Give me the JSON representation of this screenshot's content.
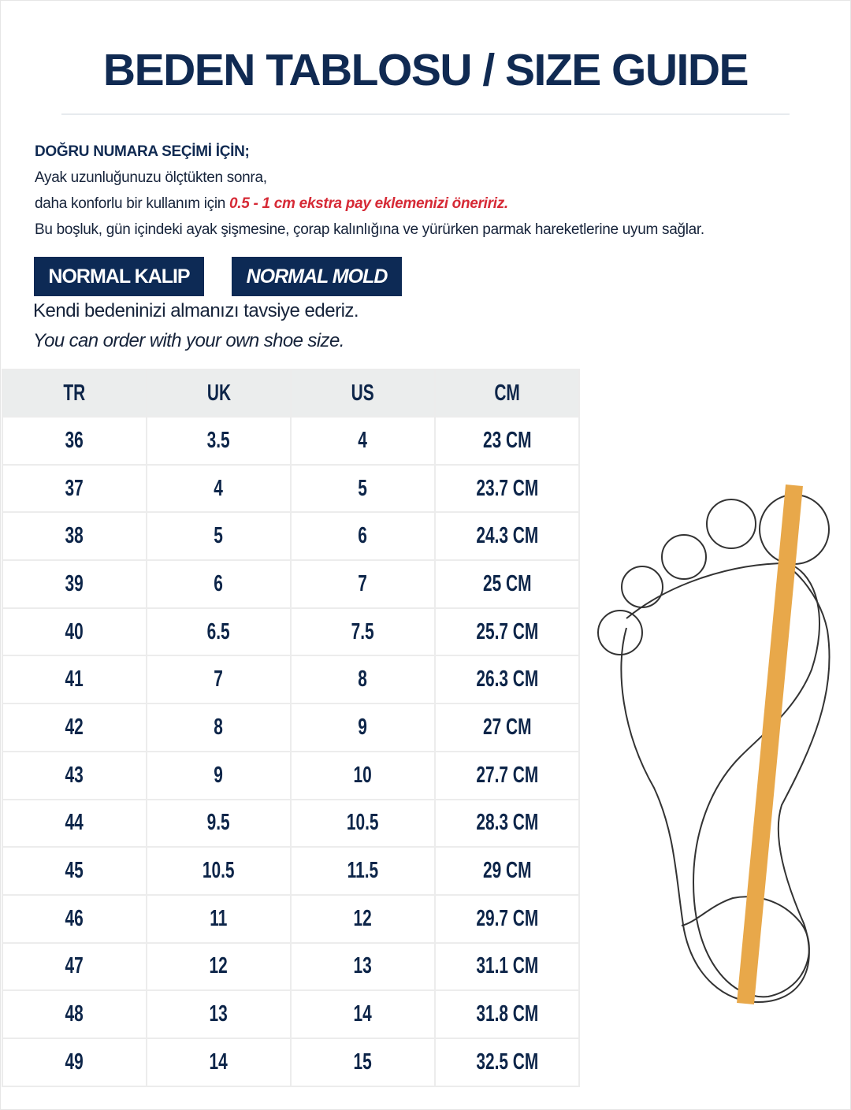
{
  "title": "BEDEN TABLOSU / SIZE GUIDE",
  "intro": {
    "heading": "DOĞRU NUMARA SEÇİMİ İÇİN;",
    "line1": "Ayak uzunluğunuzu ölçtükten sonra,",
    "line2_prefix": "daha konforlu bir kullanım için ",
    "line2_highlight": "0.5 - 1 cm ekstra pay eklemenizi öneririz.",
    "line3": "Bu boşluk, gün içindeki ayak şişmesine, çorap kalınlığına ve yürürken parmak hareketlerine uyum sağlar."
  },
  "badges": {
    "tr": "NORMAL KALIP",
    "en": "NORMAL MOLD"
  },
  "recommendation": {
    "tr": "Kendi bedeninizi almanızı tavsiye ederiz.",
    "en": "You can order with your own shoe size."
  },
  "colors": {
    "navy": "#0d2a55",
    "highlight_red": "#d62a36",
    "ruler_orange": "#e8a84a",
    "header_bg": "#ebeded"
  },
  "illustration": "foot-outline-with-measuring-ruler",
  "table": {
    "headers": [
      "TR",
      "UK",
      "US",
      "CM"
    ],
    "rows": [
      [
        "36",
        "3.5",
        "4",
        "23 CM"
      ],
      [
        "37",
        "4",
        "5",
        "23.7 CM"
      ],
      [
        "38",
        "5",
        "6",
        "24.3 CM"
      ],
      [
        "39",
        "6",
        "7",
        "25 CM"
      ],
      [
        "40",
        "6.5",
        "7.5",
        "25.7 CM"
      ],
      [
        "41",
        "7",
        "8",
        "26.3 CM"
      ],
      [
        "42",
        "8",
        "9",
        "27 CM"
      ],
      [
        "43",
        "9",
        "10",
        "27.7 CM"
      ],
      [
        "44",
        "9.5",
        "10.5",
        "28.3 CM"
      ],
      [
        "45",
        "10.5",
        "11.5",
        "29 CM"
      ],
      [
        "46",
        "11",
        "12",
        "29.7 CM"
      ],
      [
        "47",
        "12",
        "13",
        "31.1 CM"
      ],
      [
        "48",
        "13",
        "14",
        "31.8 CM"
      ],
      [
        "49",
        "14",
        "15",
        "32.5 CM"
      ]
    ]
  }
}
